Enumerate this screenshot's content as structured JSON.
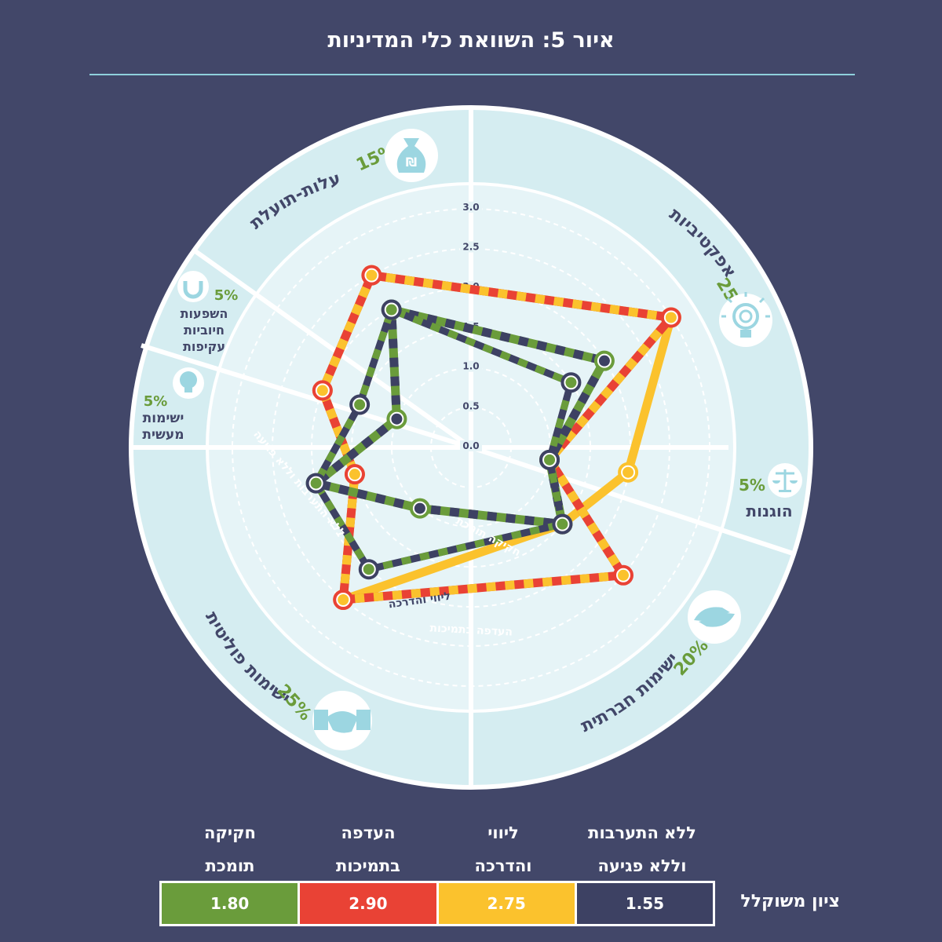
{
  "title": "איור 5: השוואת כלי המדיניות",
  "colors": {
    "background": "#424769",
    "ring": "#d5edf1",
    "inner": "#e6f4f7",
    "green": "#6a9c3b",
    "red": "#e94235",
    "yellow": "#fbc22d",
    "navy": "#3d4163",
    "teal": "#9cd6e1",
    "percent_green": "#6a9c3b"
  },
  "categories": [
    {
      "name": "אפקטיביות",
      "weight": "25%",
      "icon": "lightbulb-target-icon"
    },
    {
      "name": "הוגנות",
      "weight": "5%",
      "icon": "scales-icon"
    },
    {
      "name": "ישימות חברתית",
      "weight": "20%",
      "icon": "helping-hands-icon"
    },
    {
      "name": "ישימות פוליטית",
      "weight": "25%",
      "icon": "handshake-icon"
    },
    {
      "name": "ישימות מעשית",
      "weight": "5%",
      "icon": "puzzle-lightbulb-icon"
    },
    {
      "name": "השפעות חיוביות עקיפות",
      "weight": "5%",
      "icon": "magnet-icon"
    },
    {
      "name": "עלות-תועלת",
      "weight": "15%",
      "icon": "money-bag-icon"
    }
  ],
  "chart_data": {
    "type": "radar",
    "title": "איור 5: השוואת כלי המדיניות",
    "axes": [
      "אפקטיביות",
      "הוגנות",
      "ישימות חברתית",
      "ישימות פוליטית",
      "ישימות מעשית",
      "השפעות חיוביות עקיפות",
      "עלות-תועלת"
    ],
    "range": [
      0,
      3
    ],
    "ticks": [
      "0.0",
      "0.5",
      "1.0",
      "1.5",
      "2.0",
      "2.5",
      "3.0"
    ],
    "series": [
      {
        "name": "ללא התערבות וללא פגיעה",
        "values": [
          1.5,
          1.0,
          1.5,
          2.0,
          2.0,
          1.5,
          2.0
        ],
        "score": "1.55",
        "path_label": "ללא התערבות וללא פגיעה"
      },
      {
        "name": "ליווי והדרכה",
        "values": [
          3.0,
          2.0,
          1.5,
          2.5,
          1.5,
          2.0,
          2.5
        ],
        "score": "2.75",
        "path_label": "ליווי והדרכה"
      },
      {
        "name": "העדפה בתמיכות",
        "values": [
          3.0,
          1.0,
          2.5,
          2.5,
          1.5,
          2.0,
          2.5
        ],
        "score": "2.90",
        "path_label": "העדפה בתמיכות"
      },
      {
        "name": "חקיקה תומכת",
        "values": [
          2.0,
          1.0,
          1.5,
          1.0,
          2.0,
          1.0,
          2.0
        ],
        "score": "1.80",
        "path_label": "חקיקה תומכת"
      }
    ]
  },
  "legend": {
    "score_label": "ציון משוקלל",
    "items": [
      {
        "line1": "ללא התערבות",
        "line2": "וללא פגיעה",
        "score": "1.55"
      },
      {
        "line1": "ליווי",
        "line2": "והדרכה",
        "score": "2.75"
      },
      {
        "line1": "העדפה",
        "line2": "בתמיכות",
        "score": "2.90"
      },
      {
        "line1": "חקיקה",
        "line2": "תומכת",
        "score": "1.80"
      }
    ]
  }
}
